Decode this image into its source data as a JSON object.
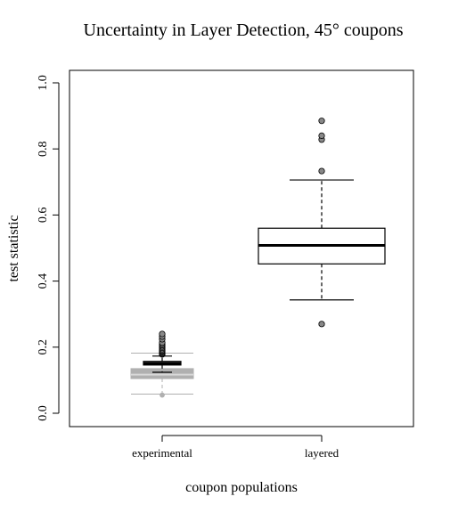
{
  "chart_data": {
    "type": "box",
    "title": "Uncertainty in Layer Detection, 45° coupons",
    "xlabel": "coupon populations",
    "ylabel": "test statistic",
    "ylim": [
      0.0,
      1.0
    ],
    "yticks": [
      "0.0",
      "0.2",
      "0.4",
      "0.6",
      "0.8",
      "1.0"
    ],
    "categories": [
      "experimental",
      "layered"
    ],
    "colors": {
      "primary": "#000000",
      "secondary": "#b0b0b0"
    },
    "series": [
      {
        "category": "experimental",
        "color": "#000000",
        "whisker_low": 0.124,
        "q1": 0.146,
        "median": 0.151,
        "q3": 0.157,
        "whisker_high": 0.173,
        "outliers": [
          0.178,
          0.18,
          0.182,
          0.185,
          0.188,
          0.19,
          0.194,
          0.198,
          0.202,
          0.206,
          0.21,
          0.214,
          0.224,
          0.232,
          0.24
        ]
      },
      {
        "category": "experimental",
        "color": "#b0b0b0",
        "whisker_low": 0.058,
        "q1": 0.105,
        "median": 0.117,
        "q3": 0.135,
        "whisker_high": 0.182,
        "outliers": [
          0.055
        ]
      },
      {
        "category": "layered",
        "color": "#000000",
        "whisker_low": 0.343,
        "q1": 0.452,
        "median": 0.508,
        "q3": 0.56,
        "whisker_high": 0.706,
        "outliers": [
          0.27,
          0.733,
          0.828,
          0.84,
          0.885
        ]
      }
    ]
  }
}
